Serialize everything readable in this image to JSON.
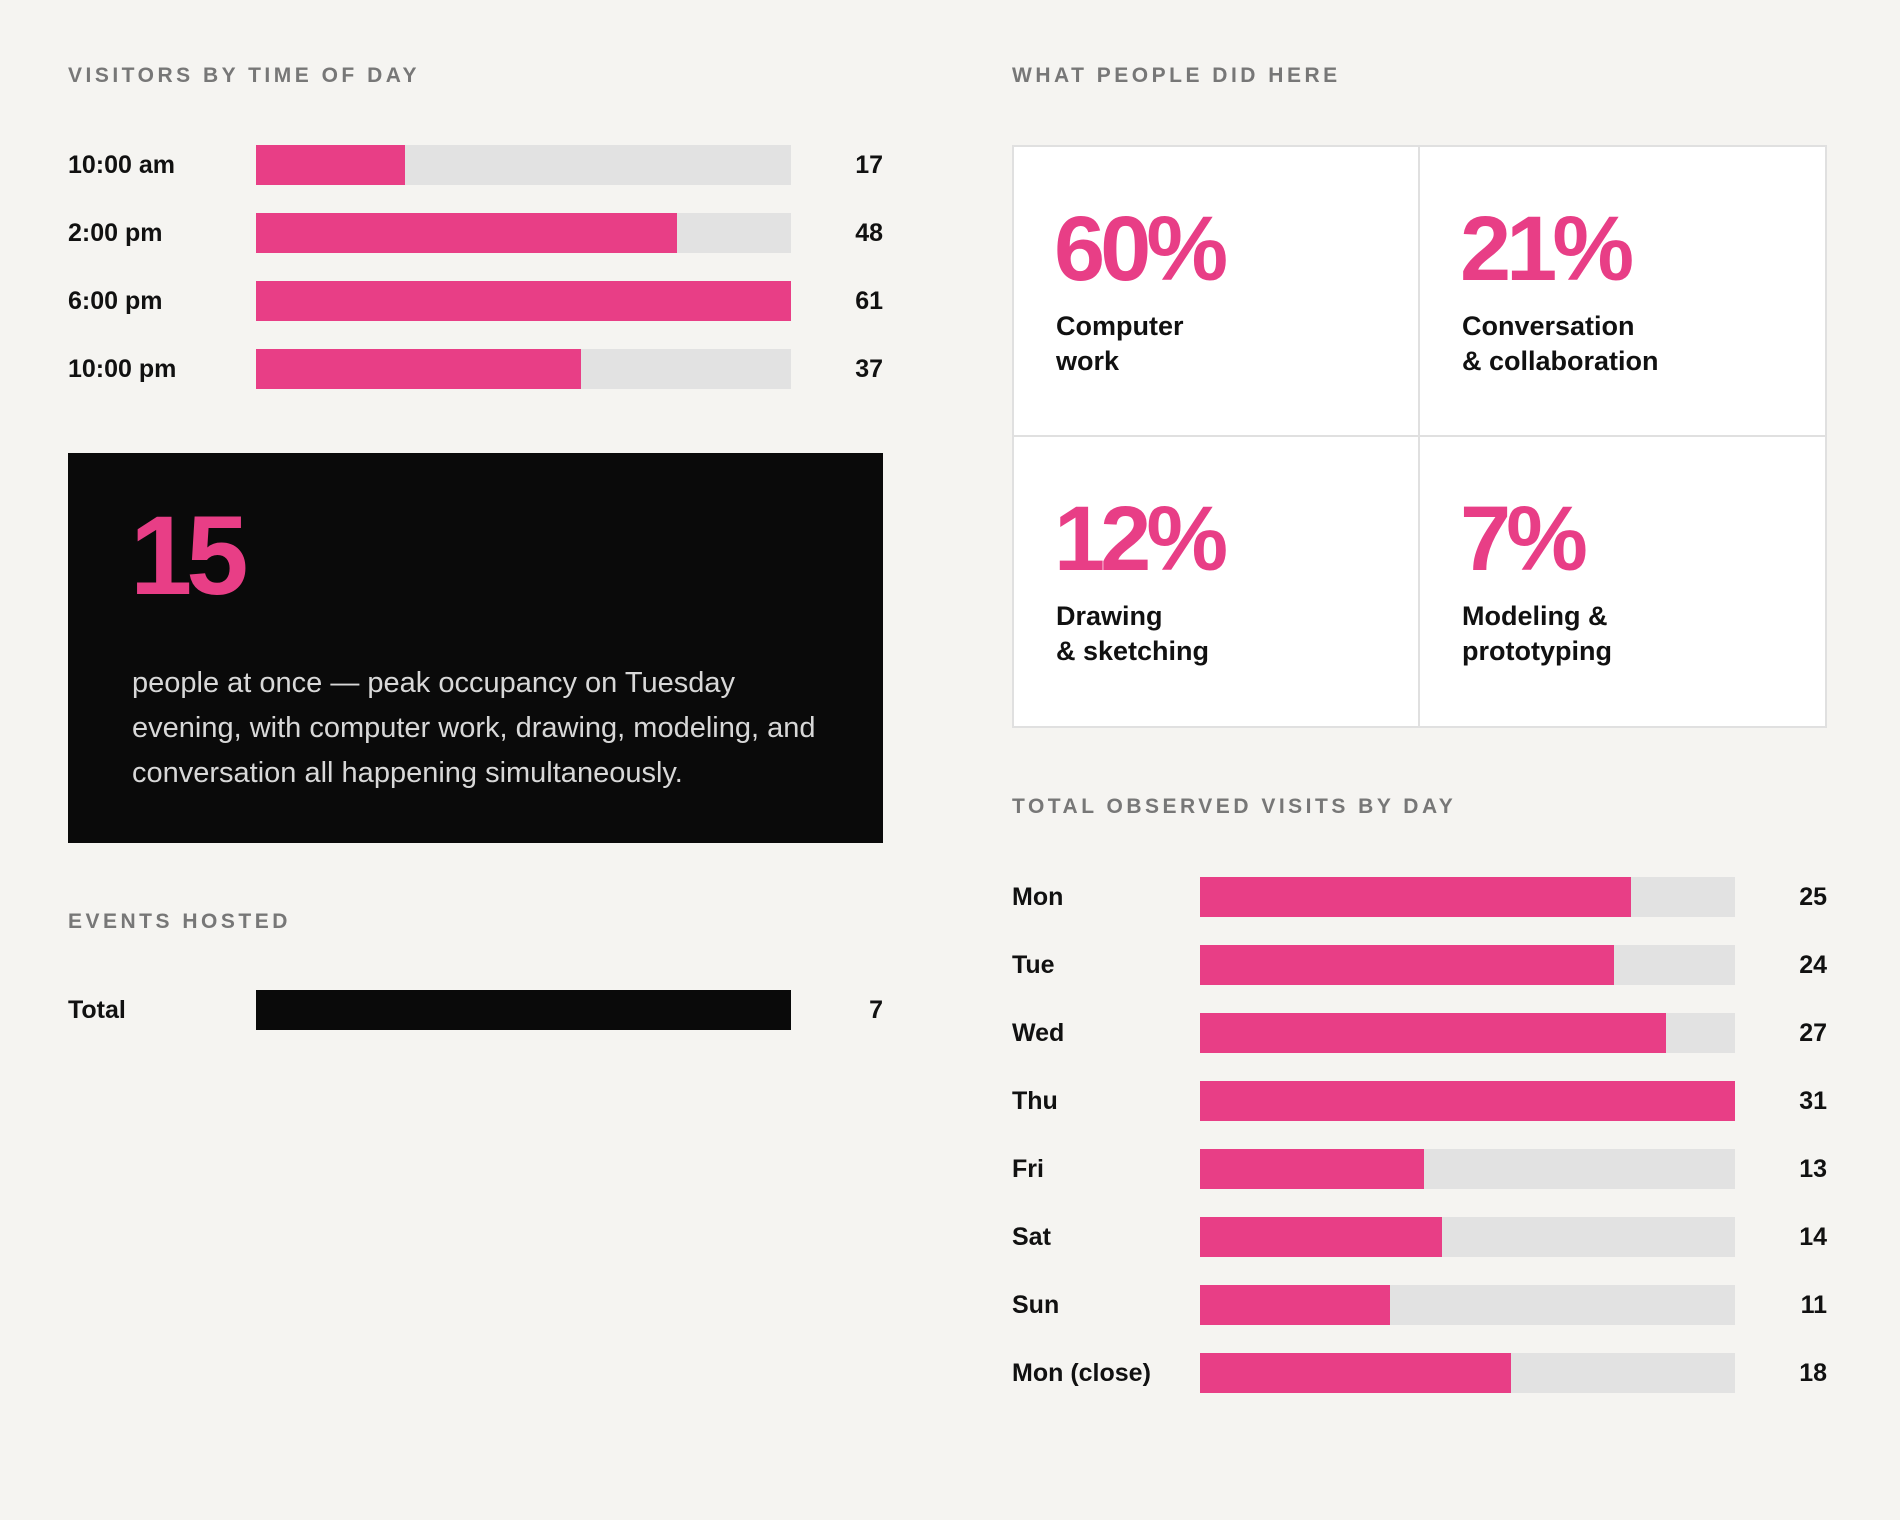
{
  "chart_data": [
    {
      "type": "bar",
      "title": "VISITORS BY TIME OF DAY",
      "categories": [
        "10:00 am",
        "2:00 pm",
        "6:00 pm",
        "10:00 pm"
      ],
      "values": [
        17,
        48,
        61,
        37
      ],
      "color": "#e83e86",
      "track_color": "#e2e2e2"
    },
    {
      "type": "bar",
      "title": "EVENTS HOSTED",
      "categories": [
        "Total"
      ],
      "values": [
        7
      ],
      "color": "#0a0a0a",
      "track_color": "#e2e2e2"
    },
    {
      "type": "bar",
      "title": "TOTAL OBSERVED VISITS BY DAY",
      "categories": [
        "Mon",
        "Tue",
        "Wed",
        "Thu",
        "Fri",
        "Sat",
        "Sun",
        "Mon (close)"
      ],
      "values": [
        25,
        24,
        27,
        31,
        13,
        14,
        11,
        18
      ],
      "color": "#e83e86",
      "track_color": "#e2e2e2"
    }
  ],
  "highlight": {
    "value": "15",
    "text": "people at once — peak occupancy on Tuesday evening, with computer work, drawing, modeling, and conversation all happening simultaneously."
  },
  "activities": {
    "title": "WHAT PEOPLE DID HERE",
    "items": [
      {
        "value": "60%",
        "label": "Computer\nwork"
      },
      {
        "value": "21%",
        "label": "Conversation\n& collaboration"
      },
      {
        "value": "12%",
        "label": "Drawing\n& sketching"
      },
      {
        "value": "7%",
        "label": "Modeling &\nprototyping"
      }
    ]
  }
}
